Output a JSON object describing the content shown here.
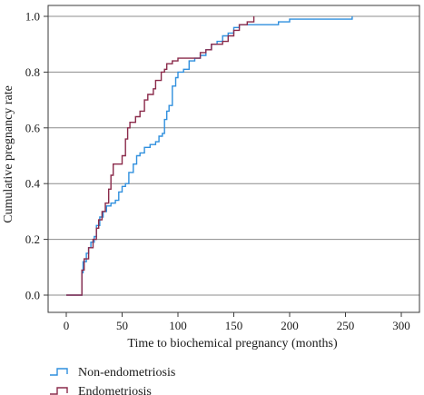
{
  "chart_data": {
    "type": "line",
    "step": true,
    "xlabel": "Time to biochemical pregnancy (months)",
    "ylabel": "Cumulative pregnancy rate",
    "xlim": [
      0,
      300
    ],
    "ylim": [
      0.0,
      1.0
    ],
    "xticks": [
      0,
      50,
      100,
      150,
      200,
      250,
      300
    ],
    "yticks": [
      0.0,
      0.2,
      0.4,
      0.6,
      0.8,
      1.0
    ],
    "xtick_labels": [
      "0",
      "50",
      "100",
      "150",
      "200",
      "250",
      "300"
    ],
    "ytick_labels": [
      "0.0",
      "0.2",
      "0.4",
      "0.6",
      "0.8",
      "1.0"
    ],
    "grid": "horizontal",
    "legend_position": "bottom-left",
    "series": [
      {
        "name": "Non-endometriosis",
        "color": "#2f8fde",
        "points": [
          [
            0,
            0
          ],
          [
            14,
            0
          ],
          [
            14,
            0.08
          ],
          [
            15,
            0.12
          ],
          [
            18,
            0.15
          ],
          [
            20,
            0.17
          ],
          [
            22,
            0.19
          ],
          [
            25,
            0.21
          ],
          [
            27,
            0.25
          ],
          [
            30,
            0.28
          ],
          [
            33,
            0.3
          ],
          [
            36,
            0.32
          ],
          [
            40,
            0.33
          ],
          [
            44,
            0.34
          ],
          [
            47,
            0.37
          ],
          [
            50,
            0.39
          ],
          [
            53,
            0.4
          ],
          [
            56,
            0.44
          ],
          [
            60,
            0.47
          ],
          [
            63,
            0.5
          ],
          [
            66,
            0.51
          ],
          [
            70,
            0.53
          ],
          [
            75,
            0.54
          ],
          [
            80,
            0.55
          ],
          [
            83,
            0.57
          ],
          [
            86,
            0.58
          ],
          [
            88,
            0.63
          ],
          [
            90,
            0.66
          ],
          [
            92,
            0.68
          ],
          [
            95,
            0.75
          ],
          [
            98,
            0.78
          ],
          [
            100,
            0.8
          ],
          [
            105,
            0.81
          ],
          [
            110,
            0.84
          ],
          [
            115,
            0.85
          ],
          [
            120,
            0.86
          ],
          [
            125,
            0.88
          ],
          [
            130,
            0.9
          ],
          [
            135,
            0.91
          ],
          [
            140,
            0.93
          ],
          [
            145,
            0.94
          ],
          [
            150,
            0.96
          ],
          [
            155,
            0.97
          ],
          [
            160,
            0.97
          ],
          [
            170,
            0.97
          ],
          [
            190,
            0.98
          ],
          [
            200,
            0.99
          ],
          [
            230,
            0.99
          ],
          [
            256,
            1.0
          ]
        ]
      },
      {
        "name": "Endometriosis",
        "color": "#8a2a4a",
        "points": [
          [
            0,
            0
          ],
          [
            14,
            0
          ],
          [
            14,
            0.09
          ],
          [
            16,
            0.13
          ],
          [
            20,
            0.17
          ],
          [
            24,
            0.2
          ],
          [
            27,
            0.24
          ],
          [
            29,
            0.27
          ],
          [
            32,
            0.3
          ],
          [
            35,
            0.33
          ],
          [
            38,
            0.38
          ],
          [
            40,
            0.43
          ],
          [
            42,
            0.47
          ],
          [
            50,
            0.5
          ],
          [
            53,
            0.56
          ],
          [
            55,
            0.6
          ],
          [
            57,
            0.62
          ],
          [
            62,
            0.64
          ],
          [
            66,
            0.66
          ],
          [
            70,
            0.7
          ],
          [
            73,
            0.72
          ],
          [
            78,
            0.74
          ],
          [
            80,
            0.77
          ],
          [
            85,
            0.8
          ],
          [
            88,
            0.81
          ],
          [
            90,
            0.83
          ],
          [
            95,
            0.84
          ],
          [
            100,
            0.85
          ],
          [
            110,
            0.85
          ],
          [
            120,
            0.87
          ],
          [
            125,
            0.88
          ],
          [
            130,
            0.9
          ],
          [
            140,
            0.91
          ],
          [
            145,
            0.93
          ],
          [
            150,
            0.95
          ],
          [
            155,
            0.97
          ],
          [
            162,
            0.98
          ],
          [
            168,
            1.0
          ]
        ]
      }
    ]
  }
}
